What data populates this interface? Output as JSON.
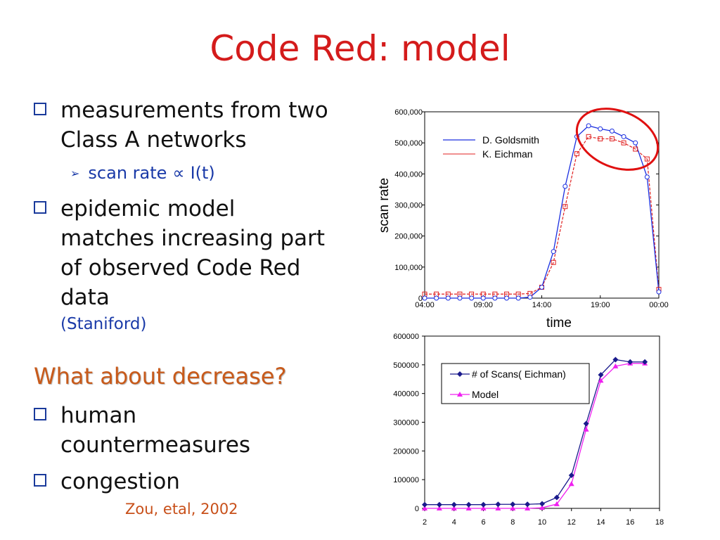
{
  "slide": {
    "title": "Code Red: model",
    "bullet1": "measurements from two Class A networks",
    "sub1_pre": "scan rate ",
    "sub1_prop": "∝",
    "sub1_post": " I(t)",
    "bullet2": "epidemic model matches increasing part of observed Code Red data",
    "bullet2_cite": "(Staniford)",
    "question": "What about decrease?",
    "bullet3": "human countermeasures",
    "bullet4": "congestion",
    "reference": "Zou, etal, 2002"
  },
  "chart_data": [
    {
      "type": "line",
      "xlabel": "time",
      "ylabel": "scan rate",
      "xticks": [
        "04:00",
        "09:00",
        "14:00",
        "19:00",
        "00:00"
      ],
      "yticks": [
        "0",
        "100,000",
        "200,000",
        "300,000",
        "400,000",
        "500,000",
        "600,000"
      ],
      "ylim": [
        0,
        600000
      ],
      "x": [
        0,
        1,
        2,
        3,
        4,
        5,
        6,
        7,
        8,
        9,
        10,
        11,
        12,
        13,
        14,
        15,
        16,
        17,
        18,
        19,
        20
      ],
      "series": [
        {
          "name": "D. Goldsmith",
          "color": "#1a2ee0",
          "values": [
            0,
            0,
            0,
            0,
            0,
            0,
            0,
            0,
            0,
            3000,
            35000,
            150000,
            360000,
            520000,
            555000,
            545000,
            538000,
            520000,
            500000,
            390000,
            20000
          ]
        },
        {
          "name": "K. Eichman",
          "color": "#e02020",
          "values": [
            13000,
            13000,
            13000,
            13000,
            13000,
            13000,
            13000,
            13000,
            13000,
            15000,
            35000,
            115000,
            295000,
            465000,
            520000,
            513000,
            513000,
            500000,
            480000,
            448000,
            28000
          ]
        }
      ],
      "annotation": "red ellipse highlighting decline"
    },
    {
      "type": "line",
      "xticks": [
        "2",
        "4",
        "6",
        "8",
        "10",
        "12",
        "14",
        "16",
        "18"
      ],
      "yticks": [
        "0",
        "100000",
        "200000",
        "300000",
        "400000",
        "500000",
        "600000"
      ],
      "xlim": [
        2,
        18
      ],
      "ylim": [
        0,
        600000
      ],
      "x": [
        2,
        3,
        4,
        5,
        6,
        7,
        8,
        9,
        10,
        11,
        12,
        13,
        14,
        15,
        16,
        17
      ],
      "series": [
        {
          "name": "# of Scans( Eichman)",
          "color": "#1a1a8c",
          "marker": "diamond",
          "values": [
            13000,
            13000,
            13000,
            13000,
            13000,
            14000,
            14000,
            14000,
            16000,
            38000,
            115000,
            295000,
            465000,
            518000,
            510000,
            510000
          ]
        },
        {
          "name": "Model",
          "color": "#f020f0",
          "marker": "triangle",
          "values": [
            0,
            0,
            0,
            0,
            0,
            0,
            0,
            0,
            2000,
            15000,
            85000,
            275000,
            445000,
            495000,
            505000,
            505000
          ]
        }
      ]
    }
  ]
}
